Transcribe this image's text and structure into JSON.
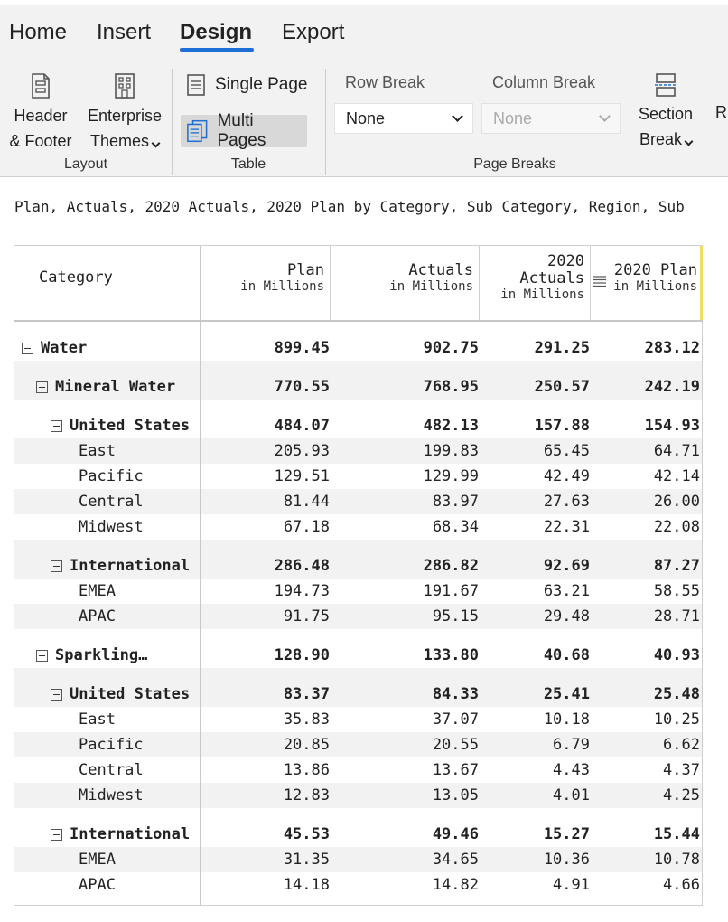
{
  "tabs": [
    {
      "label": "Home"
    },
    {
      "label": "Insert"
    },
    {
      "label": "Design"
    },
    {
      "label": "Export"
    }
  ],
  "ribbon": {
    "layout": {
      "group_label": "Layout",
      "header_footer": {
        "line1": "Header",
        "line2": "& Footer",
        "icon": "page-header-icon"
      },
      "themes": {
        "line1": "Enterprise",
        "line2": "Themes",
        "icon": "building-icon"
      }
    },
    "table": {
      "group_label": "Table",
      "single_page": "Single Page",
      "multi_pages": "Multi Pages"
    },
    "page_breaks": {
      "group_label": "Page Breaks",
      "row_break_label": "Row Break",
      "row_break_value": "None",
      "column_break_label": "Column Break",
      "column_break_value": "None",
      "section_break": {
        "line1": "Section",
        "line2": "Break"
      },
      "overflow": "R"
    }
  },
  "subtitle": "Plan, Actuals, 2020 Actuals, 2020 Plan by Category, Sub Category, Region, Sub",
  "table": {
    "columns": [
      {
        "title": "Category"
      },
      {
        "title": "Plan",
        "unit": "in Millions"
      },
      {
        "title": "Actuals",
        "unit": "in Millions"
      },
      {
        "title_l1": "2020",
        "title_l2": "Actuals",
        "unit": "in Millions"
      },
      {
        "title": "2020 Plan",
        "unit": "in Millions"
      }
    ],
    "rows": [
      {
        "label": "Water",
        "level": 0,
        "bold": true,
        "toggle": true,
        "shade": false,
        "gap": true,
        "values": [
          "899.45",
          "902.75",
          "291.25",
          "283.12"
        ]
      },
      {
        "label": "Mineral Water",
        "level": 1,
        "bold": true,
        "toggle": true,
        "shade": true,
        "gap": true,
        "values": [
          "770.55",
          "768.95",
          "250.57",
          "242.19"
        ]
      },
      {
        "label": "United States",
        "level": 2,
        "bold": true,
        "toggle": true,
        "shade": false,
        "gap": true,
        "values": [
          "484.07",
          "482.13",
          "157.88",
          "154.93"
        ]
      },
      {
        "label": "East",
        "level": 3,
        "bold": false,
        "toggle": false,
        "shade": true,
        "gap": false,
        "values": [
          "205.93",
          "199.83",
          "65.45",
          "64.71"
        ]
      },
      {
        "label": "Pacific",
        "level": 3,
        "bold": false,
        "toggle": false,
        "shade": false,
        "gap": false,
        "values": [
          "129.51",
          "129.99",
          "42.49",
          "42.14"
        ]
      },
      {
        "label": "Central",
        "level": 3,
        "bold": false,
        "toggle": false,
        "shade": true,
        "gap": false,
        "values": [
          "81.44",
          "83.97",
          "27.63",
          "26.00"
        ]
      },
      {
        "label": "Midwest",
        "level": 3,
        "bold": false,
        "toggle": false,
        "shade": false,
        "gap": false,
        "values": [
          "67.18",
          "68.34",
          "22.31",
          "22.08"
        ]
      },
      {
        "label": "International",
        "level": 2,
        "bold": true,
        "toggle": true,
        "shade": true,
        "gap": true,
        "values": [
          "286.48",
          "286.82",
          "92.69",
          "87.27"
        ]
      },
      {
        "label": "EMEA",
        "level": 3,
        "bold": false,
        "toggle": false,
        "shade": false,
        "gap": false,
        "values": [
          "194.73",
          "191.67",
          "63.21",
          "58.55"
        ]
      },
      {
        "label": "APAC",
        "level": 3,
        "bold": false,
        "toggle": false,
        "shade": true,
        "gap": false,
        "values": [
          "91.75",
          "95.15",
          "29.48",
          "28.71"
        ]
      },
      {
        "label": "Sparkling…",
        "level": 1,
        "bold": true,
        "toggle": true,
        "shade": false,
        "gap": true,
        "values": [
          "128.90",
          "133.80",
          "40.68",
          "40.93"
        ]
      },
      {
        "label": "United States",
        "level": 2,
        "bold": true,
        "toggle": true,
        "shade": true,
        "gap": true,
        "values": [
          "83.37",
          "84.33",
          "25.41",
          "25.48"
        ]
      },
      {
        "label": "East",
        "level": 3,
        "bold": false,
        "toggle": false,
        "shade": false,
        "gap": false,
        "values": [
          "35.83",
          "37.07",
          "10.18",
          "10.25"
        ]
      },
      {
        "label": "Pacific",
        "level": 3,
        "bold": false,
        "toggle": false,
        "shade": true,
        "gap": false,
        "values": [
          "20.85",
          "20.55",
          "6.79",
          "6.62"
        ]
      },
      {
        "label": "Central",
        "level": 3,
        "bold": false,
        "toggle": false,
        "shade": false,
        "gap": false,
        "values": [
          "13.86",
          "13.67",
          "4.43",
          "4.37"
        ]
      },
      {
        "label": "Midwest",
        "level": 3,
        "bold": false,
        "toggle": false,
        "shade": true,
        "gap": false,
        "values": [
          "12.83",
          "13.05",
          "4.01",
          "4.25"
        ]
      },
      {
        "label": "International",
        "level": 2,
        "bold": true,
        "toggle": true,
        "shade": false,
        "gap": true,
        "values": [
          "45.53",
          "49.46",
          "15.27",
          "15.44"
        ]
      },
      {
        "label": "EMEA",
        "level": 3,
        "bold": false,
        "toggle": false,
        "shade": true,
        "gap": false,
        "values": [
          "31.35",
          "34.65",
          "10.36",
          "10.78"
        ]
      },
      {
        "label": "APAC",
        "level": 3,
        "bold": false,
        "toggle": false,
        "shade": false,
        "gap": false,
        "values": [
          "14.18",
          "14.82",
          "4.91",
          "4.66"
        ]
      }
    ]
  },
  "colors": {
    "accent": "#1d6fd6",
    "shade": "#f2f2f2",
    "ribbon": "#f2f2f2",
    "highlight": "#f2dc5d"
  }
}
